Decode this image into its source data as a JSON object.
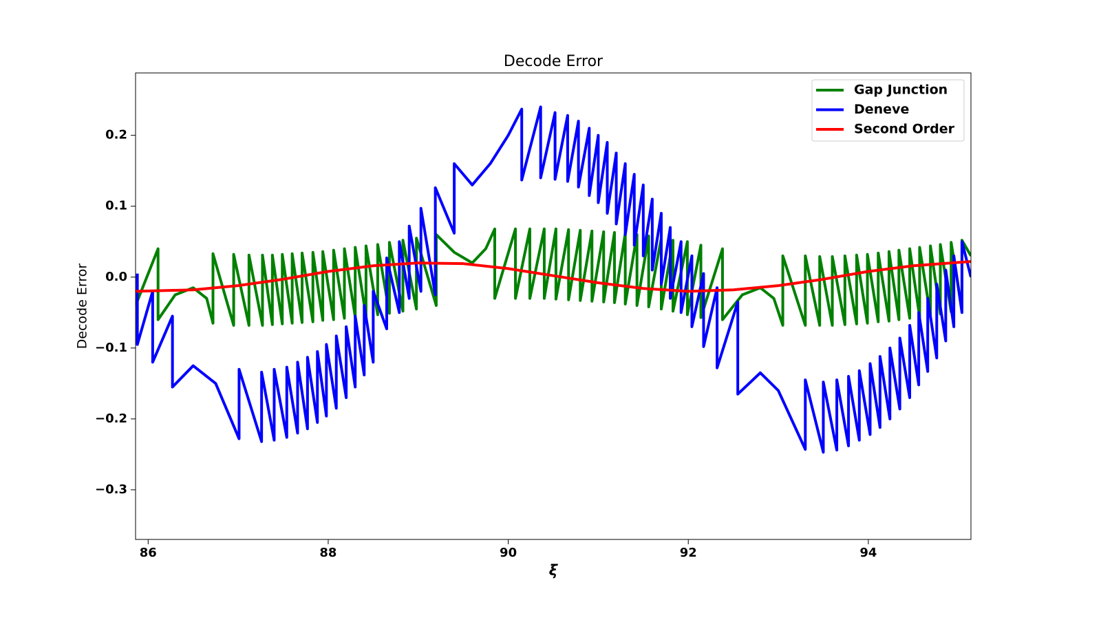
{
  "chart_data": {
    "type": "line",
    "title": "Decode Error",
    "x_label": "ξ",
    "y_label": "Decode Error",
    "xlim": [
      85.86,
      95.14
    ],
    "ylim": [
      -0.37,
      0.288
    ],
    "xticks": [
      86,
      88,
      90,
      92,
      94
    ],
    "yticks": [
      {
        "value": -0.3,
        "label": "−0.3"
      },
      {
        "value": -0.2,
        "label": "−0.2"
      },
      {
        "value": -0.1,
        "label": "−0.1"
      },
      {
        "value": 0,
        "label": "0.0"
      },
      0.1,
      0.2
    ],
    "legend": "upper right",
    "series": [
      {
        "name": "Gap Junction",
        "color": "#008000",
        "x": [
          85.86,
          86.11,
          86.11,
          86.3,
          86.5,
          86.65,
          86.72,
          86.72,
          86.95,
          86.95,
          87.12,
          87.12,
          87.27,
          87.27,
          87.38,
          87.38,
          87.49,
          87.49,
          87.6,
          87.6,
          87.71,
          87.71,
          87.83,
          87.83,
          87.94,
          87.94,
          88.06,
          88.06,
          88.18,
          88.18,
          88.3,
          88.3,
          88.42,
          88.42,
          88.55,
          88.55,
          88.68,
          88.68,
          88.83,
          88.83,
          88.98,
          88.98,
          89.2,
          89.2,
          89.4,
          89.6,
          89.75,
          89.85,
          89.85,
          90.08,
          90.08,
          90.24,
          90.24,
          90.4,
          90.4,
          90.53,
          90.53,
          90.67,
          90.67,
          90.8,
          90.8,
          90.93,
          90.93,
          91.06,
          91.06,
          91.18,
          91.18,
          91.3,
          91.3,
          91.43,
          91.43,
          91.56,
          91.56,
          91.7,
          91.7,
          91.83,
          91.83,
          91.99,
          91.99,
          92.14,
          92.14,
          92.38,
          92.38,
          92.6,
          92.8,
          92.95,
          93.05,
          93.05,
          93.3,
          93.3,
          93.46,
          93.46,
          93.6,
          93.6,
          93.74,
          93.74,
          93.87,
          93.87,
          93.99,
          93.99,
          94.11,
          94.11,
          94.23,
          94.23,
          94.34,
          94.34,
          94.46,
          94.46,
          94.57,
          94.57,
          94.69,
          94.69,
          94.8,
          94.8,
          94.92,
          94.92,
          95.04,
          95.04,
          95.14
        ],
        "values": [
          -0.04,
          0.04,
          -0.06,
          -0.025,
          -0.015,
          -0.03,
          -0.065,
          0.033,
          -0.068,
          0.032,
          -0.068,
          0.031,
          -0.068,
          0.031,
          -0.067,
          0.031,
          -0.066,
          0.032,
          -0.065,
          0.033,
          -0.064,
          0.034,
          -0.063,
          0.035,
          -0.061,
          0.036,
          -0.06,
          0.038,
          -0.058,
          0.04,
          -0.056,
          0.042,
          -0.055,
          0.044,
          -0.053,
          0.046,
          -0.051,
          0.049,
          -0.048,
          0.052,
          -0.045,
          0.055,
          -0.04,
          0.06,
          0.035,
          0.02,
          0.04,
          0.068,
          -0.03,
          0.068,
          -0.03,
          0.068,
          -0.03,
          0.068,
          -0.03,
          0.068,
          -0.031,
          0.067,
          -0.032,
          0.066,
          -0.033,
          0.065,
          -0.034,
          0.064,
          -0.035,
          0.063,
          -0.036,
          0.062,
          -0.038,
          0.06,
          -0.04,
          0.058,
          -0.042,
          0.055,
          -0.045,
          0.052,
          -0.048,
          0.05,
          -0.053,
          0.045,
          -0.057,
          0.04,
          -0.06,
          -0.025,
          -0.015,
          -0.03,
          -0.068,
          0.03,
          -0.068,
          0.03,
          -0.068,
          0.029,
          -0.068,
          0.029,
          -0.067,
          0.03,
          -0.066,
          0.031,
          -0.065,
          0.032,
          -0.063,
          0.034,
          -0.062,
          0.036,
          -0.06,
          0.038,
          -0.058,
          0.04,
          -0.056,
          0.042,
          -0.054,
          0.044,
          -0.052,
          0.046,
          -0.049,
          0.049,
          -0.046,
          0.052,
          0.03
        ]
      },
      {
        "name": "Deneve",
        "color": "#0000ff",
        "x": [
          85.88,
          85.88,
          86.05,
          86.05,
          86.27,
          86.27,
          86.5,
          86.75,
          87.01,
          87.01,
          87.26,
          87.26,
          87.4,
          87.4,
          87.54,
          87.54,
          87.66,
          87.66,
          87.77,
          87.77,
          87.88,
          87.88,
          87.98,
          87.98,
          88.09,
          88.09,
          88.2,
          88.2,
          88.3,
          88.3,
          88.4,
          88.4,
          88.5,
          88.5,
          88.65,
          88.65,
          88.79,
          88.79,
          88.9,
          88.9,
          89.03,
          89.03,
          89.19,
          89.19,
          89.4,
          89.4,
          89.6,
          89.8,
          90.0,
          90.15,
          90.15,
          90.36,
          90.36,
          90.52,
          90.52,
          90.66,
          90.66,
          90.78,
          90.78,
          90.9,
          90.9,
          91.0,
          91.0,
          91.1,
          91.1,
          91.2,
          91.2,
          91.3,
          91.3,
          91.4,
          91.4,
          91.5,
          91.5,
          91.6,
          91.6,
          91.7,
          91.7,
          91.8,
          91.8,
          91.92,
          91.92,
          92.04,
          92.04,
          92.17,
          92.17,
          92.32,
          92.32,
          92.55,
          92.55,
          92.8,
          93.0,
          93.3,
          93.3,
          93.5,
          93.5,
          93.65,
          93.65,
          93.78,
          93.78,
          93.9,
          93.9,
          94.02,
          94.02,
          94.13,
          94.13,
          94.24,
          94.24,
          94.35,
          94.35,
          94.46,
          94.46,
          94.56,
          94.56,
          94.66,
          94.66,
          94.76,
          94.76,
          94.86,
          94.86,
          94.95,
          94.95,
          95.04,
          95.04,
          95.14
        ],
        "values": [
          0.005,
          -0.095,
          -0.02,
          -0.12,
          -0.055,
          -0.155,
          -0.125,
          -0.15,
          -0.228,
          -0.13,
          -0.232,
          -0.134,
          -0.23,
          -0.13,
          -0.226,
          -0.127,
          -0.22,
          -0.12,
          -0.214,
          -0.113,
          -0.205,
          -0.105,
          -0.196,
          -0.095,
          -0.185,
          -0.083,
          -0.17,
          -0.07,
          -0.155,
          -0.055,
          -0.138,
          -0.04,
          -0.12,
          -0.02,
          -0.073,
          0.027,
          -0.05,
          0.05,
          -0.03,
          0.072,
          -0.02,
          0.097,
          -0.025,
          0.126,
          0.062,
          0.16,
          0.13,
          0.16,
          0.2,
          0.237,
          0.137,
          0.24,
          0.14,
          0.232,
          0.138,
          0.228,
          0.135,
          0.22,
          0.127,
          0.21,
          0.115,
          0.2,
          0.105,
          0.19,
          0.09,
          0.175,
          0.075,
          0.16,
          0.06,
          0.145,
          0.045,
          0.13,
          0.03,
          0.11,
          0.01,
          0.09,
          -0.01,
          0.07,
          -0.03,
          0.05,
          -0.05,
          0.03,
          -0.07,
          0.005,
          -0.098,
          -0.015,
          -0.128,
          -0.035,
          -0.165,
          -0.135,
          -0.16,
          -0.243,
          -0.145,
          -0.247,
          -0.148,
          -0.244,
          -0.145,
          -0.238,
          -0.14,
          -0.23,
          -0.132,
          -0.222,
          -0.122,
          -0.212,
          -0.112,
          -0.2,
          -0.1,
          -0.186,
          -0.086,
          -0.17,
          -0.068,
          -0.152,
          -0.05,
          -0.133,
          -0.03,
          -0.114,
          -0.01,
          -0.09,
          0.01,
          -0.07,
          0.03,
          -0.05,
          0.05,
          0.0
        ]
      },
      {
        "name": "Second Order",
        "color": "#ff0000",
        "x": [
          85.86,
          86.5,
          87.0,
          87.5,
          88.0,
          88.5,
          89.0,
          89.5,
          90.0,
          90.5,
          91.0,
          91.5,
          92.0,
          92.5,
          93.0,
          93.5,
          94.0,
          94.5,
          95.14
        ],
        "values": [
          -0.02,
          -0.018,
          -0.012,
          -0.003,
          0.008,
          0.016,
          0.02,
          0.019,
          0.012,
          0.002,
          -0.008,
          -0.016,
          -0.02,
          -0.018,
          -0.012,
          -0.003,
          0.008,
          0.016,
          0.022
        ]
      }
    ]
  }
}
